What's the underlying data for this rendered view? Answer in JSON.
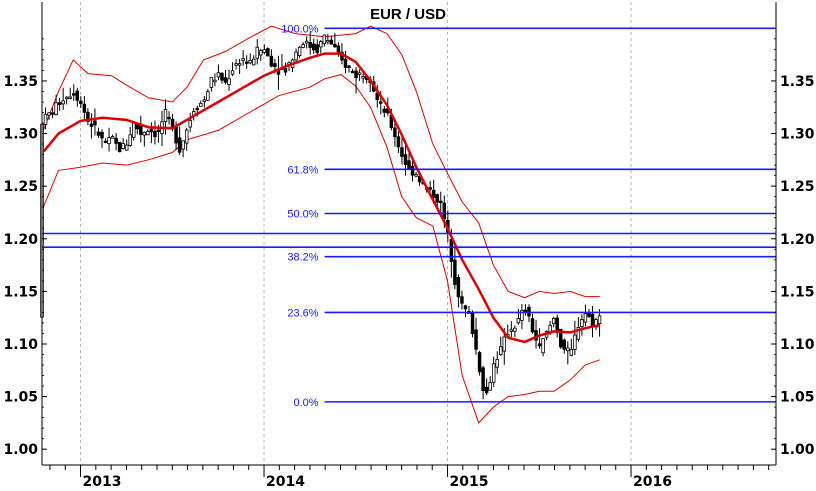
{
  "chart_data": {
    "type": "candlestick",
    "title": "EUR / USD",
    "ylim": [
      0.985,
      1.425
    ],
    "y_ticks": [
      "1.00",
      "1.05",
      "1.10",
      "1.15",
      "1.20",
      "1.25",
      "1.30",
      "1.35"
    ],
    "x_range": [
      2012.79,
      2016.79
    ],
    "x_ticks": [
      {
        "label": "2013",
        "x": 2013.0
      },
      {
        "label": "2014",
        "x": 2014.0
      },
      {
        "label": "2015",
        "x": 2015.0
      },
      {
        "label": "2016",
        "x": 2016.0
      }
    ],
    "grid": "dashed vertical year lines",
    "fibonacci_levels": [
      {
        "label": "100.0%",
        "y": 1.4,
        "x_start": 2014.33
      },
      {
        "label": "61.8%",
        "y": 1.266,
        "x_start": 2014.33
      },
      {
        "label": "50.0%",
        "y": 1.224,
        "x_start": 2014.33
      },
      {
        "label": "38.2%",
        "y": 1.183,
        "x_start": 2014.33
      },
      {
        "label": "23.6%",
        "y": 1.13,
        "x_start": 2014.33
      },
      {
        "label": "0.0%",
        "y": 1.045,
        "x_start": 2014.33
      }
    ],
    "horizontal_lines": [
      1.205,
      1.192
    ],
    "moving_average": [
      [
        2012.8,
        1.283
      ],
      [
        2012.88,
        1.3
      ],
      [
        2013.0,
        1.312
      ],
      [
        2013.12,
        1.315
      ],
      [
        2013.25,
        1.313
      ],
      [
        2013.37,
        1.306
      ],
      [
        2013.5,
        1.305
      ],
      [
        2013.62,
        1.317
      ],
      [
        2013.75,
        1.33
      ],
      [
        2013.87,
        1.342
      ],
      [
        2014.0,
        1.355
      ],
      [
        2014.12,
        1.364
      ],
      [
        2014.25,
        1.372
      ],
      [
        2014.33,
        1.376
      ],
      [
        2014.42,
        1.376
      ],
      [
        2014.5,
        1.368
      ],
      [
        2014.58,
        1.35
      ],
      [
        2014.67,
        1.327
      ],
      [
        2014.75,
        1.299
      ],
      [
        2014.83,
        1.268
      ],
      [
        2014.92,
        1.237
      ],
      [
        2015.0,
        1.21
      ],
      [
        2015.08,
        1.18
      ],
      [
        2015.17,
        1.152
      ],
      [
        2015.25,
        1.125
      ],
      [
        2015.33,
        1.106
      ],
      [
        2015.42,
        1.102
      ],
      [
        2015.5,
        1.108
      ],
      [
        2015.58,
        1.112
      ],
      [
        2015.67,
        1.111
      ],
      [
        2015.75,
        1.115
      ],
      [
        2015.83,
        1.118
      ]
    ],
    "upper_band": [
      [
        2012.79,
        1.3
      ],
      [
        2012.88,
        1.34
      ],
      [
        2012.96,
        1.37
      ],
      [
        2013.04,
        1.357
      ],
      [
        2013.17,
        1.355
      ],
      [
        2013.25,
        1.346
      ],
      [
        2013.37,
        1.334
      ],
      [
        2013.5,
        1.33
      ],
      [
        2013.58,
        1.344
      ],
      [
        2013.67,
        1.37
      ],
      [
        2013.79,
        1.378
      ],
      [
        2013.92,
        1.391
      ],
      [
        2014.04,
        1.402
      ],
      [
        2014.17,
        1.395
      ],
      [
        2014.33,
        1.392
      ],
      [
        2014.5,
        1.395
      ],
      [
        2014.58,
        1.402
      ],
      [
        2014.67,
        1.395
      ],
      [
        2014.75,
        1.375
      ],
      [
        2014.83,
        1.34
      ],
      [
        2014.92,
        1.29
      ],
      [
        2015.0,
        1.262
      ],
      [
        2015.08,
        1.235
      ],
      [
        2015.17,
        1.215
      ],
      [
        2015.25,
        1.175
      ],
      [
        2015.33,
        1.15
      ],
      [
        2015.42,
        1.144
      ],
      [
        2015.5,
        1.15
      ],
      [
        2015.58,
        1.148
      ],
      [
        2015.67,
        1.15
      ],
      [
        2015.75,
        1.145
      ],
      [
        2015.83,
        1.145
      ]
    ],
    "lower_band": [
      [
        2012.79,
        1.227
      ],
      [
        2012.88,
        1.265
      ],
      [
        2013.0,
        1.268
      ],
      [
        2013.12,
        1.272
      ],
      [
        2013.25,
        1.27
      ],
      [
        2013.37,
        1.275
      ],
      [
        2013.5,
        1.282
      ],
      [
        2013.58,
        1.294
      ],
      [
        2013.75,
        1.303
      ],
      [
        2013.92,
        1.32
      ],
      [
        2014.08,
        1.336
      ],
      [
        2014.25,
        1.344
      ],
      [
        2014.33,
        1.352
      ],
      [
        2014.42,
        1.356
      ],
      [
        2014.5,
        1.345
      ],
      [
        2014.58,
        1.325
      ],
      [
        2014.67,
        1.287
      ],
      [
        2014.75,
        1.24
      ],
      [
        2014.83,
        1.22
      ],
      [
        2014.92,
        1.212
      ],
      [
        2015.0,
        1.16
      ],
      [
        2015.08,
        1.07
      ],
      [
        2015.17,
        1.025
      ],
      [
        2015.25,
        1.04
      ],
      [
        2015.33,
        1.05
      ],
      [
        2015.42,
        1.052
      ],
      [
        2015.5,
        1.055
      ],
      [
        2015.58,
        1.055
      ],
      [
        2015.67,
        1.066
      ],
      [
        2015.75,
        1.08
      ],
      [
        2015.83,
        1.085
      ]
    ],
    "price_path": [
      [
        2012.79,
        1.312
      ],
      [
        2012.85,
        1.322
      ],
      [
        2012.9,
        1.333
      ],
      [
        2012.96,
        1.34
      ],
      [
        2013.0,
        1.33
      ],
      [
        2013.04,
        1.312
      ],
      [
        2013.08,
        1.305
      ],
      [
        2013.13,
        1.29
      ],
      [
        2013.17,
        1.295
      ],
      [
        2013.21,
        1.285
      ],
      [
        2013.25,
        1.29
      ],
      [
        2013.29,
        1.31
      ],
      [
        2013.33,
        1.3
      ],
      [
        2013.37,
        1.305
      ],
      [
        2013.42,
        1.298
      ],
      [
        2013.46,
        1.32
      ],
      [
        2013.5,
        1.305
      ],
      [
        2013.54,
        1.285
      ],
      [
        2013.58,
        1.305
      ],
      [
        2013.62,
        1.325
      ],
      [
        2013.67,
        1.33
      ],
      [
        2013.71,
        1.35
      ],
      [
        2013.75,
        1.355
      ],
      [
        2013.79,
        1.348
      ],
      [
        2013.83,
        1.362
      ],
      [
        2013.88,
        1.372
      ],
      [
        2013.92,
        1.365
      ],
      [
        2013.96,
        1.378
      ],
      [
        2014.0,
        1.38
      ],
      [
        2014.04,
        1.368
      ],
      [
        2014.08,
        1.36
      ],
      [
        2014.12,
        1.362
      ],
      [
        2014.17,
        1.376
      ],
      [
        2014.21,
        1.388
      ],
      [
        2014.25,
        1.383
      ],
      [
        2014.29,
        1.38
      ],
      [
        2014.33,
        1.392
      ],
      [
        2014.38,
        1.383
      ],
      [
        2014.42,
        1.369
      ],
      [
        2014.46,
        1.363
      ],
      [
        2014.5,
        1.355
      ],
      [
        2014.54,
        1.358
      ],
      [
        2014.58,
        1.352
      ],
      [
        2014.62,
        1.33
      ],
      [
        2014.67,
        1.318
      ],
      [
        2014.71,
        1.3
      ],
      [
        2014.75,
        1.28
      ],
      [
        2014.79,
        1.265
      ],
      [
        2014.83,
        1.262
      ],
      [
        2014.87,
        1.25
      ],
      [
        2014.92,
        1.243
      ],
      [
        2014.96,
        1.235
      ],
      [
        2015.0,
        1.205
      ],
      [
        2015.04,
        1.16
      ],
      [
        2015.08,
        1.135
      ],
      [
        2015.12,
        1.128
      ],
      [
        2015.15,
        1.1
      ],
      [
        2015.19,
        1.062
      ],
      [
        2015.21,
        1.05
      ],
      [
        2015.25,
        1.08
      ],
      [
        2015.29,
        1.095
      ],
      [
        2015.33,
        1.112
      ],
      [
        2015.38,
        1.12
      ],
      [
        2015.42,
        1.135
      ],
      [
        2015.46,
        1.115
      ],
      [
        2015.5,
        1.095
      ],
      [
        2015.54,
        1.11
      ],
      [
        2015.58,
        1.125
      ],
      [
        2015.62,
        1.098
      ],
      [
        2015.67,
        1.09
      ],
      [
        2015.71,
        1.118
      ],
      [
        2015.75,
        1.13
      ],
      [
        2015.79,
        1.12
      ],
      [
        2015.83,
        1.125
      ]
    ]
  }
}
